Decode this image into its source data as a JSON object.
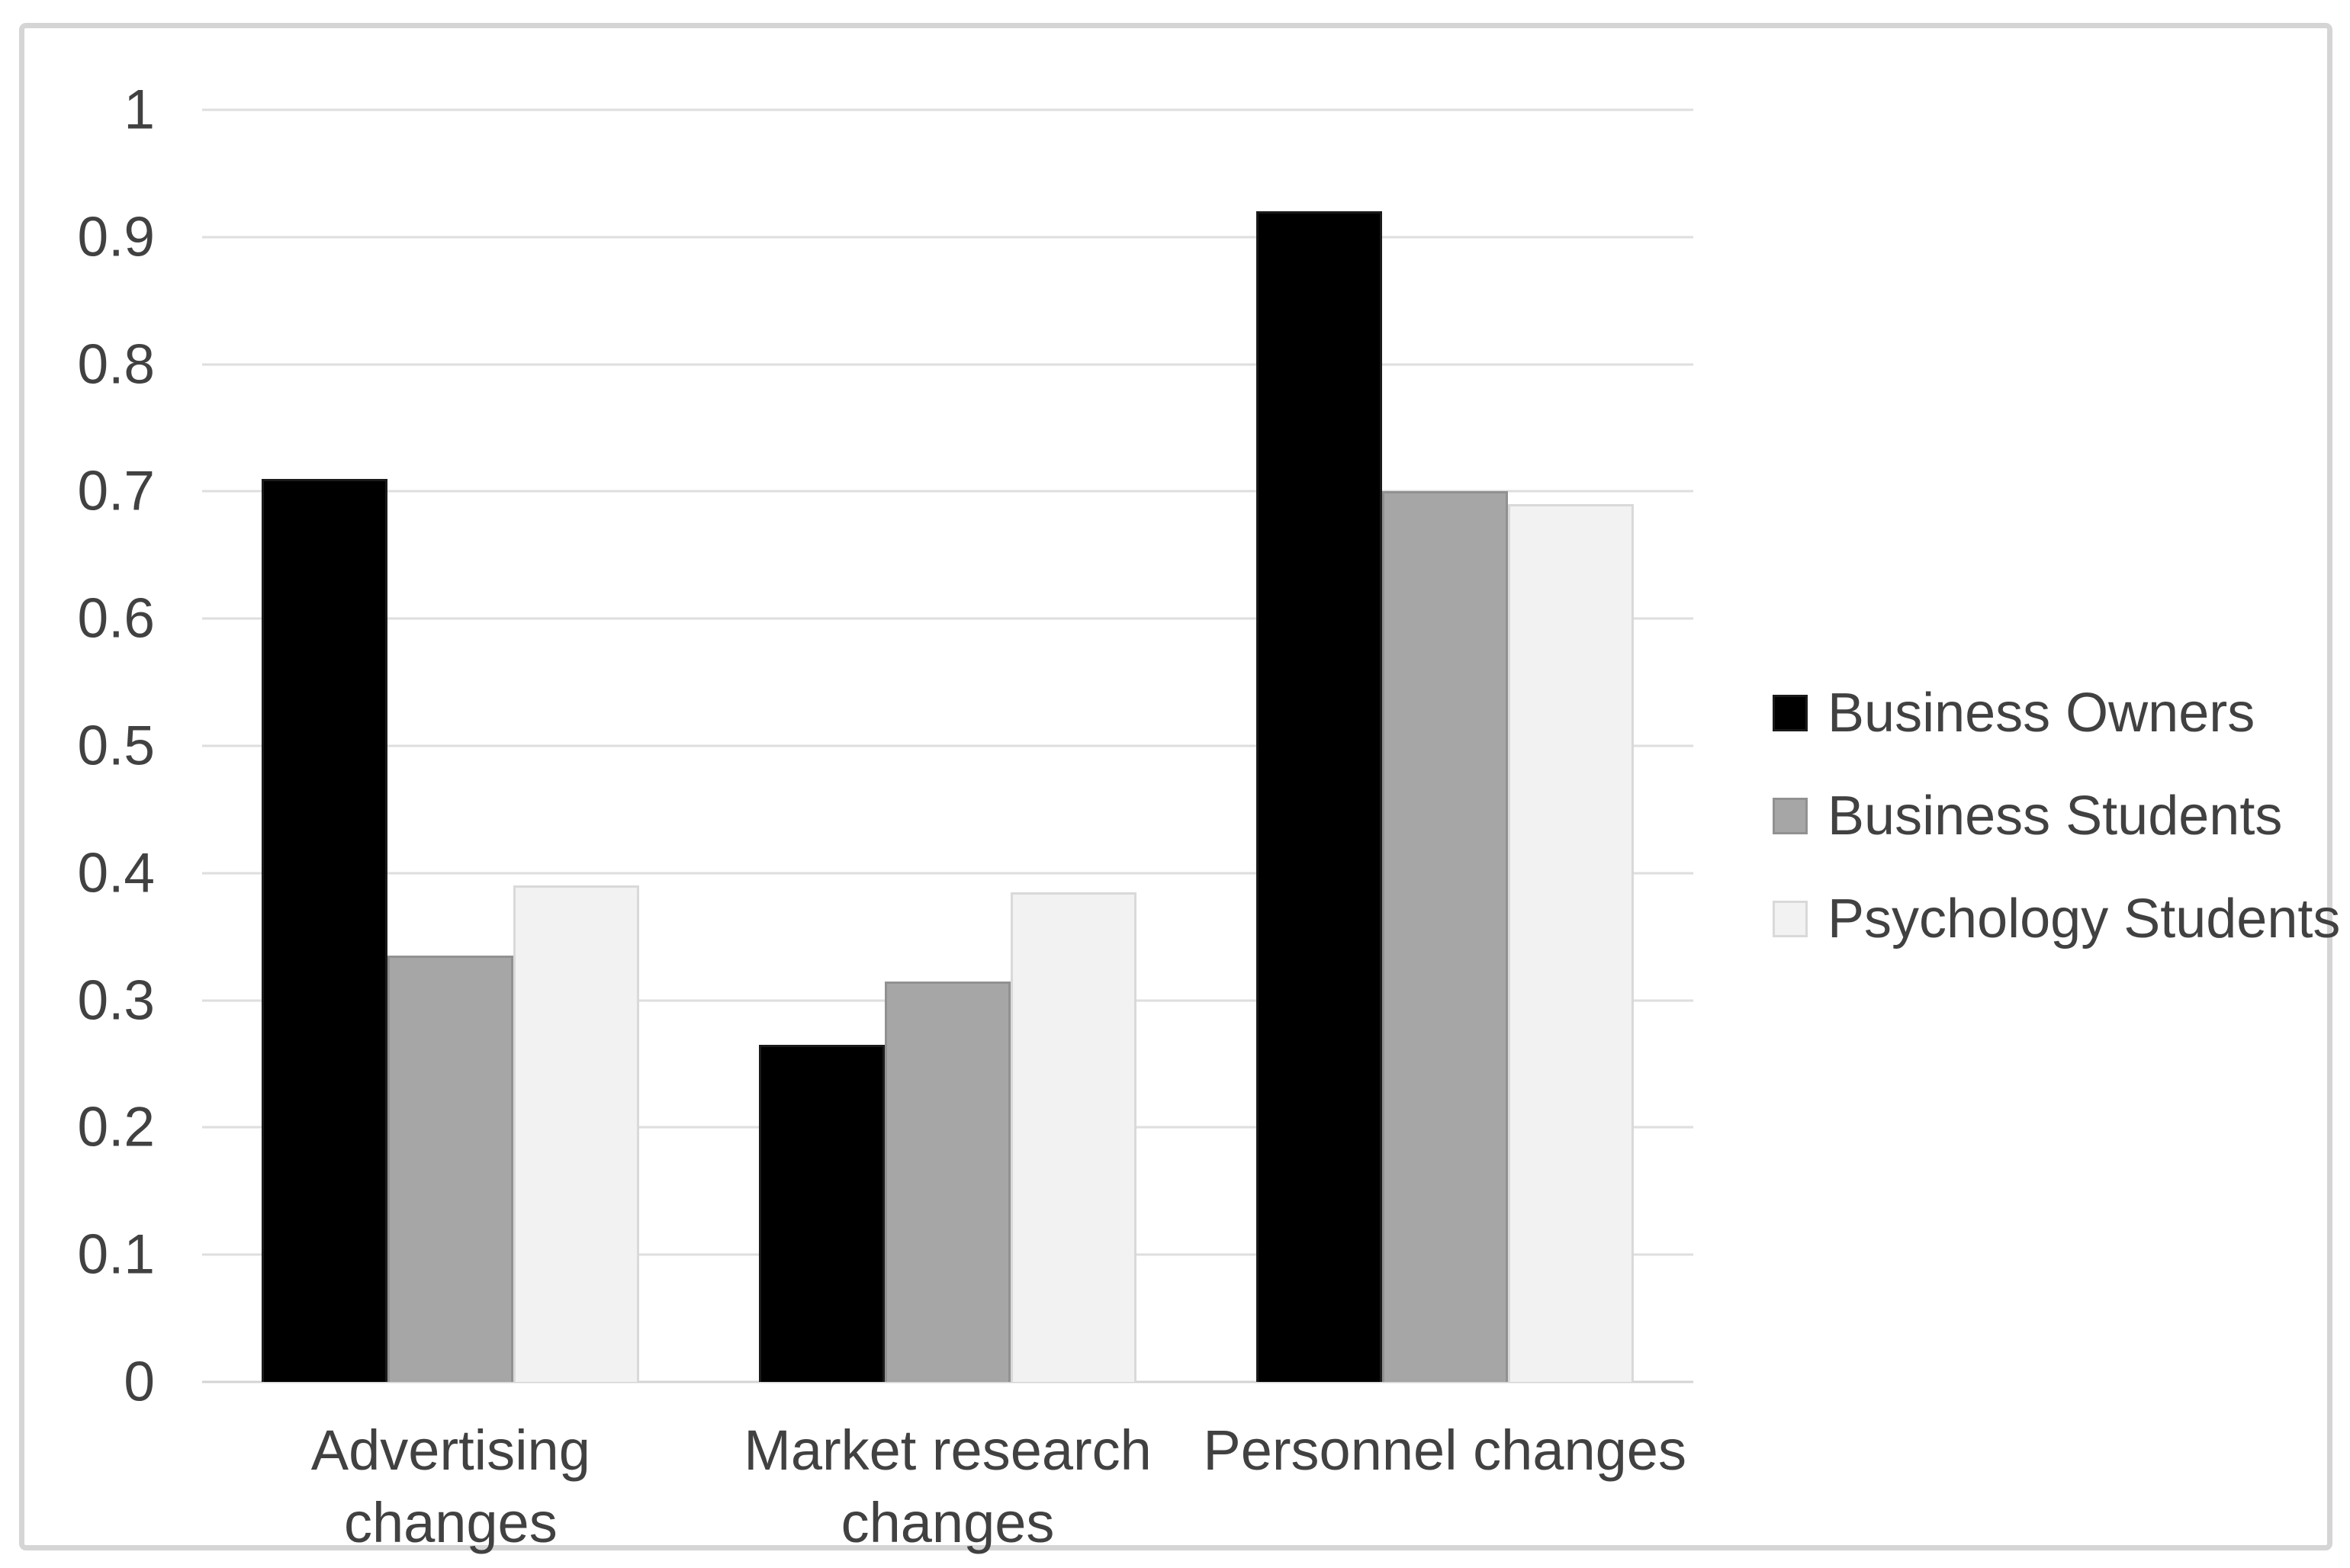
{
  "chart_data": {
    "type": "bar",
    "title": "",
    "xlabel": "",
    "ylabel": "",
    "categories": [
      "Advertising changes",
      "Market research changes",
      "Personnel changes"
    ],
    "series": [
      {
        "name": "Business Owners",
        "color": "#000000",
        "border_color": "#1a1a1a",
        "values": [
          0.71,
          0.265,
          0.92
        ]
      },
      {
        "name": "Business Students",
        "color": "#a6a6a6",
        "border_color": "#919191",
        "values": [
          0.335,
          0.315,
          0.7
        ]
      },
      {
        "name": "Psychology Students",
        "color": "#f2f2f2",
        "border_color": "#d9d9d9",
        "values": [
          0.39,
          0.385,
          0.69
        ]
      }
    ],
    "ylim": [
      0,
      1
    ],
    "y_ticks": [
      "1",
      "0.9",
      "0.8",
      "0.7",
      "0.6",
      "0.5",
      "0.4",
      "0.3",
      "0.2",
      "0.1",
      "0"
    ],
    "y_tick_values": [
      1,
      0.9,
      0.8,
      0.7,
      0.6,
      0.5,
      0.4,
      0.3,
      0.2,
      0.1,
      0
    ],
    "grid": true,
    "legend_position": "right"
  },
  "colors": {
    "background": "#ffffff",
    "frame_border": "#d5d5d5",
    "gridline": "#dedede",
    "axis_line": "#d4d4d4",
    "text": "#414141"
  }
}
